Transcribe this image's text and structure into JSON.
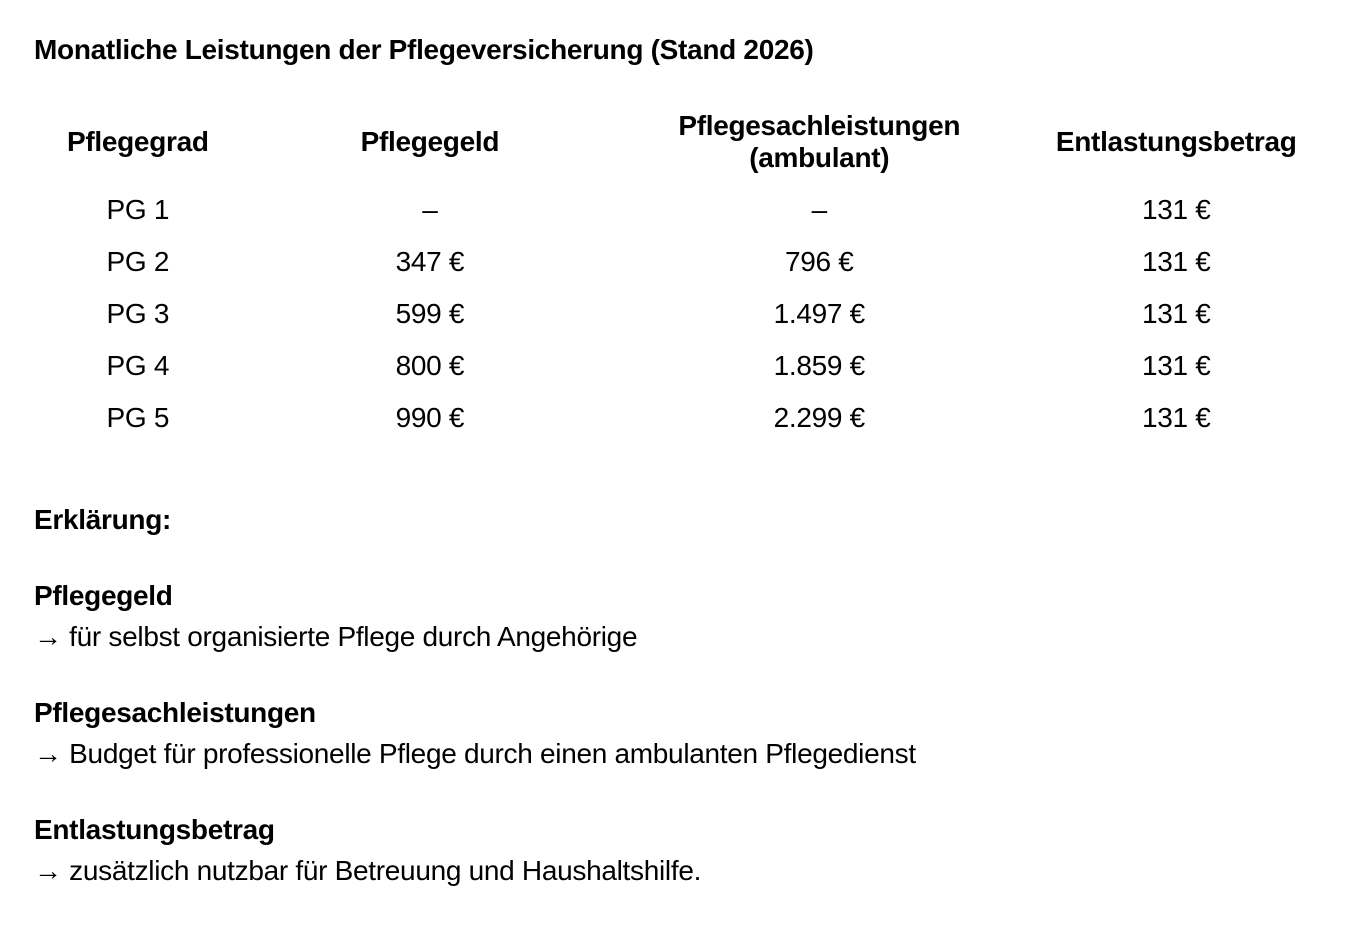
{
  "title": "Monatliche Leistungen der Pflegeversicherung (Stand 2026)",
  "table": {
    "headers": {
      "pflegegrad": "Pflegegrad",
      "pflegegeld": "Pflegegeld",
      "sachleistungen": "Pflegesachleistungen\n(ambulant)",
      "entlastung": "Entlastungsbetrag"
    },
    "rows": [
      {
        "grad": "PG 1",
        "pflegegeld": "–",
        "sachleistungen": "–",
        "entlastung": "131 €"
      },
      {
        "grad": "PG 2",
        "pflegegeld": "347 €",
        "sachleistungen": "796 €",
        "entlastung": "131 €"
      },
      {
        "grad": "PG 3",
        "pflegegeld": "599 €",
        "sachleistungen": "1.497 €",
        "entlastung": "131 €"
      },
      {
        "grad": "PG 4",
        "pflegegeld": "800 €",
        "sachleistungen": "1.859 €",
        "entlastung": "131 €"
      },
      {
        "grad": "PG 5",
        "pflegegeld": "990 €",
        "sachleistungen": "2.299 €",
        "entlastung": "131 €"
      }
    ]
  },
  "explanation": {
    "heading": "Erklärung:",
    "items": [
      {
        "term": "Pflegegeld",
        "description": "→ für selbst organisierte Pflege durch Angehörige"
      },
      {
        "term": "Pflegesachleistungen",
        "description": "→ Budget für professionelle Pflege durch einen ambulanten Pflegedienst"
      },
      {
        "term": "Entlastungsbetrag",
        "description": "→ zusätzlich nutzbar für Betreuung und Haushaltshilfe."
      }
    ]
  },
  "colors": {
    "background": "#ffffff",
    "text": "#000000"
  }
}
